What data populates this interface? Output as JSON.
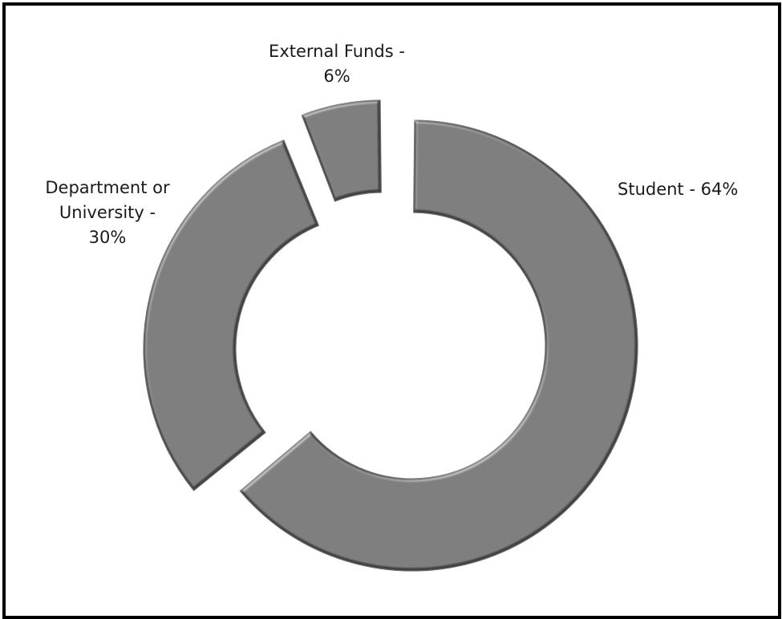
{
  "chart_data": {
    "type": "pie",
    "variant": "doughnut",
    "title": "",
    "legend": "none",
    "slice_color": "#404040",
    "edge_highlight": "#6a6a6a",
    "background": "#ffffff",
    "border_color": "#000000",
    "slices": [
      {
        "label": "Student",
        "value": 64,
        "text_lines": [
          "Student - 64%"
        ]
      },
      {
        "label": "Department or University",
        "value": 30,
        "text_lines": [
          "Department or",
          "University -",
          "30%"
        ]
      },
      {
        "label": "External Funds",
        "value": 6,
        "text_lines": [
          "External Funds -",
          "6%"
        ]
      }
    ]
  }
}
